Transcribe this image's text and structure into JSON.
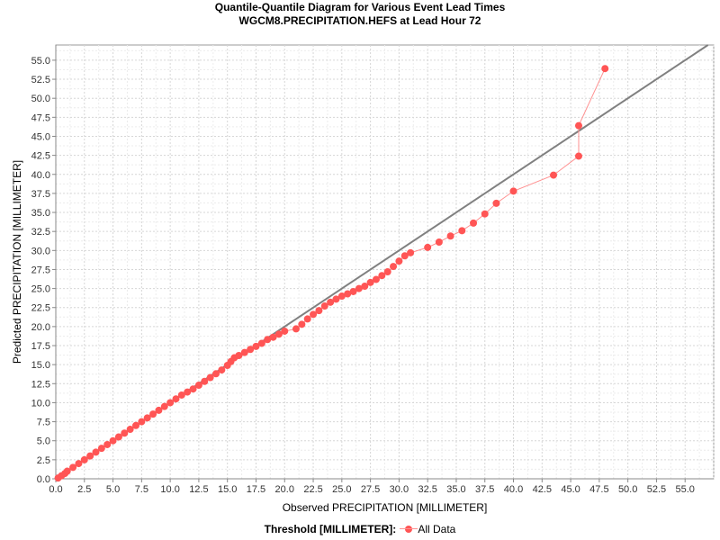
{
  "chart_data": {
    "type": "scatter",
    "title": "Quantile-Quantile Diagram for Various Event Lead Times",
    "subtitle": "WGCM8.PRECIPITATION.HEFS at Lead Hour 72",
    "xlabel": "Observed PRECIPITATION [MILLIMETER]",
    "ylabel": "Predicted PRECIPITATION [MILLIMETER]",
    "xlim": [
      0,
      57.5
    ],
    "ylim": [
      0,
      57
    ],
    "xticks": [
      "0.0",
      "2.5",
      "5.0",
      "7.5",
      "10.0",
      "12.5",
      "15.0",
      "17.5",
      "20.0",
      "22.5",
      "25.0",
      "27.5",
      "30.0",
      "32.5",
      "35.0",
      "37.5",
      "40.0",
      "42.5",
      "45.0",
      "47.5",
      "50.0",
      "52.5",
      "55.0"
    ],
    "yticks": [
      "0.0",
      "2.5",
      "5.0",
      "7.5",
      "10.0",
      "12.5",
      "15.0",
      "17.5",
      "20.0",
      "22.5",
      "25.0",
      "27.5",
      "30.0",
      "32.5",
      "35.0",
      "37.5",
      "40.0",
      "42.5",
      "45.0",
      "47.5",
      "50.0",
      "52.5",
      "55.0"
    ],
    "grid": true,
    "reference_line": "1:1 diagonal",
    "legend_position": "bottom-center",
    "legend_title": "Threshold [MILLIMETER]:",
    "series": [
      {
        "name": "All Data",
        "color": "#ff5555",
        "line_color": "#ff9090",
        "x": [
          0.2,
          0.5,
          0.8,
          1.0,
          1.5,
          2.0,
          2.5,
          3.0,
          3.5,
          4.0,
          4.5,
          5.0,
          5.5,
          6.0,
          6.5,
          7.0,
          7.5,
          8.0,
          8.5,
          9.0,
          9.5,
          10.0,
          10.5,
          11.0,
          11.5,
          12.0,
          12.5,
          13.0,
          13.5,
          14.0,
          14.5,
          15.0,
          15.3,
          15.6,
          16.0,
          16.5,
          17.0,
          17.5,
          18.0,
          18.5,
          19.0,
          19.5,
          20.0,
          21.0,
          21.5,
          22.0,
          22.5,
          23.0,
          23.5,
          24.0,
          24.5,
          25.0,
          25.5,
          26.0,
          26.5,
          27.0,
          27.5,
          28.0,
          28.5,
          29.0,
          29.5,
          30.0,
          30.5,
          31.0,
          32.5,
          33.5,
          34.5,
          35.5,
          36.5,
          37.5,
          38.5,
          40.0,
          43.5,
          45.7,
          45.7,
          48.0
        ],
        "y": [
          0.1,
          0.4,
          0.7,
          1.0,
          1.5,
          2.0,
          2.5,
          3.0,
          3.5,
          4.0,
          4.5,
          5.0,
          5.5,
          6.0,
          6.5,
          7.0,
          7.5,
          8.0,
          8.5,
          9.0,
          9.5,
          10.0,
          10.5,
          11.0,
          11.4,
          11.8,
          12.3,
          12.8,
          13.3,
          13.8,
          14.3,
          14.9,
          15.4,
          15.9,
          16.2,
          16.6,
          17.0,
          17.4,
          17.8,
          18.3,
          18.6,
          19.0,
          19.4,
          19.7,
          20.3,
          21.0,
          21.6,
          22.1,
          22.7,
          23.2,
          23.6,
          24.0,
          24.3,
          24.6,
          25.0,
          25.3,
          25.8,
          26.2,
          26.7,
          27.2,
          27.9,
          28.6,
          29.3,
          29.7,
          30.4,
          31.1,
          31.9,
          32.6,
          33.6,
          34.8,
          36.2,
          37.8,
          39.9,
          42.4,
          46.4,
          53.9
        ]
      }
    ]
  }
}
